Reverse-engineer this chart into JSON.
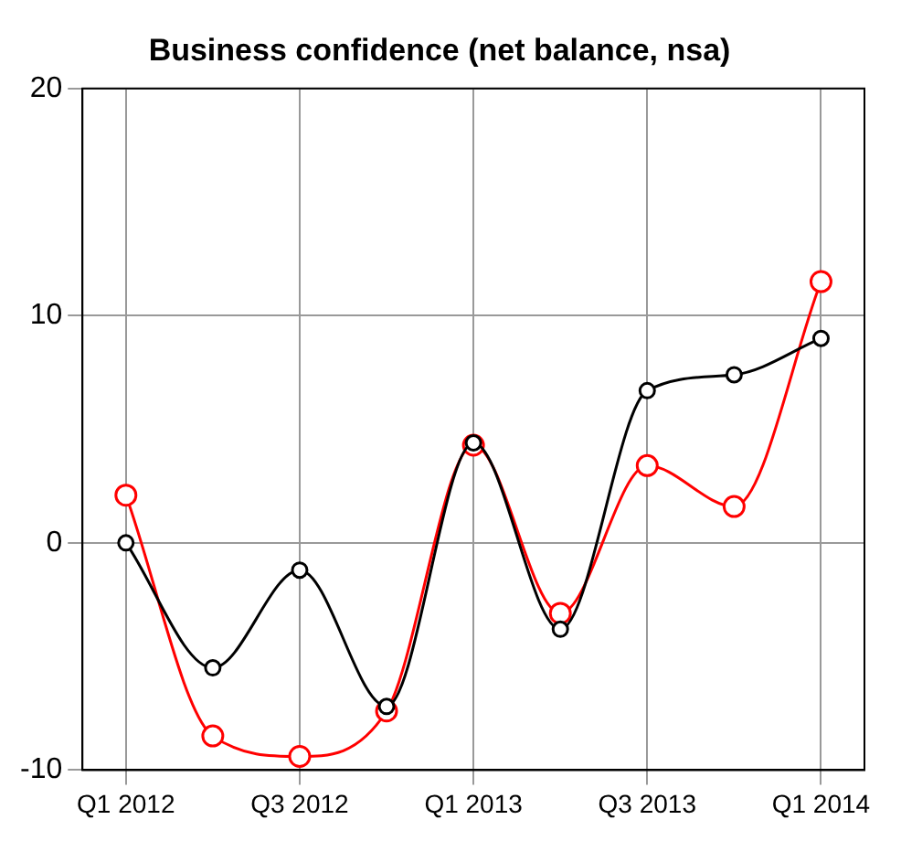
{
  "chart_data": {
    "type": "line",
    "title": "Business confidence (net balance, nsa)",
    "categories": [
      "Q1 2012",
      null,
      "Q3 2012",
      null,
      "Q1 2013",
      null,
      "Q3 2013",
      null,
      "Q1 2014"
    ],
    "series": [
      {
        "color": "#000000",
        "values": [
          0,
          -5.5,
          -1.2,
          -7.2,
          4.4,
          -3.8,
          6.7,
          7.4,
          9.0
        ]
      },
      {
        "color": "#ff0000",
        "values": [
          2.1,
          -8.5,
          -9.4,
          -7.4,
          4.3,
          -3.1,
          3.4,
          1.6,
          11.5
        ]
      }
    ],
    "ylim": [
      -10,
      20
    ],
    "yticks": [
      -10,
      0,
      10,
      20
    ],
    "grid": true,
    "marker": "circle",
    "line_style": "solid"
  }
}
